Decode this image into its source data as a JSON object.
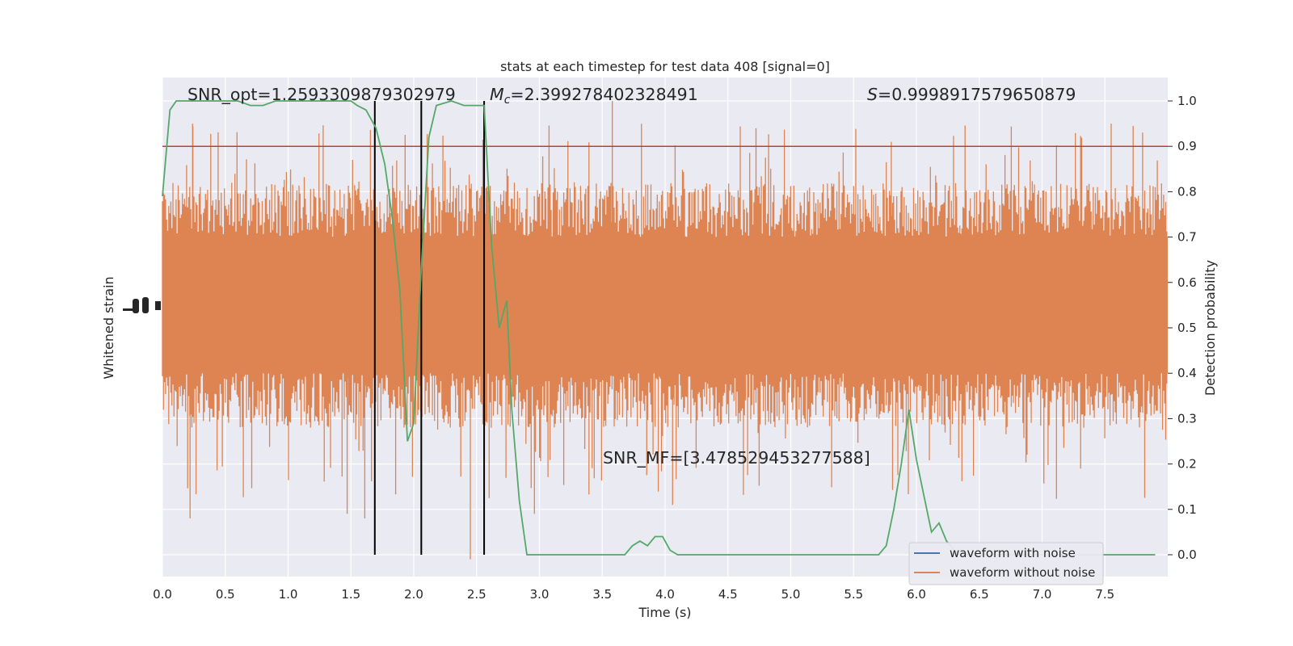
{
  "chart_data": {
    "type": "line",
    "title": "stats at each timestep for test data 408 [signal=0]",
    "xlabel": "Time (s)",
    "ylabel_left": "Whitened strain",
    "ylabel_right": "Detection probability",
    "xlim": [
      0,
      8.0
    ],
    "ylim_right": [
      -0.05,
      1.05
    ],
    "grid": true,
    "x_ticks": [
      "0.0",
      "0.5",
      "1.0",
      "1.5",
      "2.0",
      "2.5",
      "3.0",
      "3.5",
      "4.0",
      "4.5",
      "5.0",
      "5.5",
      "6.0",
      "6.5",
      "7.0",
      "7.5"
    ],
    "y_ticks_right": [
      "0.0",
      "0.1",
      "0.2",
      "0.3",
      "0.4",
      "0.5",
      "0.6",
      "0.7",
      "0.8",
      "0.9",
      "1.0"
    ],
    "annotations": {
      "snr_opt": "SNR_opt=1.2593309879302979",
      "mc_symbol": "M",
      "mc_sub": "c",
      "mc_value": "=2.399278402328491",
      "s_symbol": "S",
      "s_value": "=0.9998917579650879",
      "snr_mf": "SNR_MF=[3.478529453277588]"
    },
    "threshold": {
      "y": 0.9,
      "color": "#c03d3e"
    },
    "vertical_lines": [
      1.69,
      2.06,
      2.56
    ],
    "legend": {
      "placement": "lower-right",
      "entries": [
        {
          "label": "waveform with noise",
          "color": "#4c72b0"
        },
        {
          "label": "waveform without noise",
          "color": "#dd8452"
        }
      ]
    },
    "noise_band": {
      "color": "#dd8452",
      "core_range": [
        0.3,
        0.8
      ],
      "spike_range": [
        0.0,
        1.0
      ]
    },
    "series": [
      {
        "color": "#55a868",
        "x": [
          0.0,
          0.06,
          0.11,
          0.2,
          0.3,
          0.4,
          0.5,
          0.6,
          0.7,
          0.8,
          0.9,
          1.0,
          1.1,
          1.2,
          1.3,
          1.4,
          1.5,
          1.55,
          1.62,
          1.7,
          1.77,
          1.83,
          1.89,
          1.95,
          2.0,
          2.06,
          2.12,
          2.18,
          2.3,
          2.4,
          2.5,
          2.56,
          2.62,
          2.68,
          2.74,
          2.78,
          2.84,
          2.9,
          2.96,
          3.1,
          3.2,
          3.4,
          3.6,
          3.68,
          3.74,
          3.8,
          3.86,
          3.92,
          3.98,
          4.04,
          4.1,
          4.15,
          4.3,
          4.5,
          5.0,
          5.5,
          5.7,
          5.76,
          5.82,
          5.88,
          5.94,
          6.0,
          6.06,
          6.12,
          6.18,
          6.24,
          6.3,
          6.4,
          6.6,
          6.8,
          7.0,
          7.2,
          7.4,
          7.6,
          7.7,
          7.8,
          7.9
        ],
        "y": [
          0.79,
          0.98,
          1.0,
          1.0,
          1.0,
          1.0,
          1.0,
          1.0,
          0.99,
          0.99,
          1.0,
          1.0,
          1.0,
          1.0,
          1.0,
          1.0,
          1.0,
          0.99,
          0.98,
          0.94,
          0.86,
          0.74,
          0.58,
          0.25,
          0.29,
          0.63,
          0.92,
          0.99,
          1.0,
          0.99,
          0.99,
          0.99,
          0.68,
          0.5,
          0.56,
          0.32,
          0.12,
          0.0,
          0.0,
          0.0,
          0.0,
          0.0,
          0.0,
          0.0,
          0.02,
          0.03,
          0.02,
          0.04,
          0.04,
          0.01,
          0.0,
          0.0,
          0.0,
          0.0,
          0.0,
          0.0,
          0.0,
          0.02,
          0.1,
          0.2,
          0.32,
          0.21,
          0.13,
          0.05,
          0.07,
          0.03,
          0.01,
          0.0,
          0.0,
          0.0,
          0.0,
          0.0,
          0.0,
          0.0,
          0.0,
          0.0,
          0.0
        ]
      }
    ]
  }
}
